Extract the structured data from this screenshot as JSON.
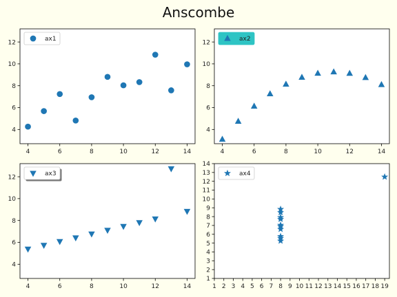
{
  "figure": {
    "background": "#ffffee",
    "title": "Anscombe"
  },
  "chart_data": [
    {
      "type": "scatter",
      "name": "ax1",
      "marker": "circle",
      "color": "#1f77b4",
      "x": [
        10,
        8,
        13,
        9,
        11,
        14,
        6,
        4,
        12,
        7,
        5
      ],
      "y": [
        8.04,
        6.95,
        7.58,
        8.81,
        8.33,
        9.96,
        7.24,
        4.26,
        10.84,
        4.82,
        5.68
      ],
      "xlim": [
        3.5,
        14.5
      ],
      "ylim": [
        2.7,
        13.2
      ],
      "xticks": [
        4,
        6,
        8,
        10,
        12,
        14
      ],
      "yticks": [
        4,
        6,
        8,
        10,
        12
      ],
      "legend": {
        "label": "ax1",
        "loc": "upper left",
        "style": "plain"
      }
    },
    {
      "type": "scatter",
      "name": "ax2",
      "marker": "triangle-up",
      "color": "#1f77b4",
      "x": [
        10,
        8,
        13,
        9,
        11,
        14,
        6,
        4,
        12,
        7,
        5
      ],
      "y": [
        9.14,
        8.14,
        8.74,
        8.77,
        9.26,
        8.1,
        6.13,
        3.1,
        9.13,
        7.26,
        4.74
      ],
      "xlim": [
        3.5,
        14.5
      ],
      "ylim": [
        2.7,
        13.2
      ],
      "xticks": [
        4,
        6,
        8,
        10,
        12,
        14
      ],
      "yticks": [
        4,
        6,
        8,
        10,
        12
      ],
      "legend": {
        "label": "ax2",
        "loc": "upper left",
        "style": "filled",
        "facecolor": "#2ec4c4"
      }
    },
    {
      "type": "scatter",
      "name": "ax3",
      "marker": "triangle-down",
      "color": "#1f77b4",
      "x": [
        10,
        8,
        13,
        9,
        11,
        14,
        6,
        4,
        12,
        7,
        5
      ],
      "y": [
        7.46,
        6.77,
        12.74,
        7.11,
        7.81,
        8.84,
        6.08,
        5.39,
        8.15,
        6.42,
        5.73
      ],
      "xlim": [
        3.5,
        14.5
      ],
      "ylim": [
        2.7,
        13.2
      ],
      "xticks": [
        4,
        6,
        8,
        10,
        12,
        14
      ],
      "yticks": [
        4,
        6,
        8,
        10,
        12
      ],
      "legend": {
        "label": "ax3",
        "loc": "upper left",
        "style": "shadow"
      }
    },
    {
      "type": "scatter",
      "name": "ax4",
      "marker": "star",
      "color": "#1f77b4",
      "x": [
        8,
        8,
        8,
        8,
        8,
        8,
        8,
        19,
        8,
        8,
        8
      ],
      "y": [
        6.58,
        5.76,
        7.71,
        8.84,
        8.47,
        7.04,
        5.25,
        12.5,
        5.56,
        7.91,
        6.89
      ],
      "xlim": [
        1,
        19.5
      ],
      "ylim": [
        1,
        14
      ],
      "xticks": [
        1,
        2,
        3,
        4,
        5,
        6,
        7,
        8,
        9,
        10,
        11,
        12,
        13,
        14,
        15,
        16,
        17,
        18,
        19
      ],
      "yticks": [
        1,
        2,
        3,
        4,
        5,
        6,
        7,
        8,
        9,
        10,
        11,
        12,
        13,
        14
      ],
      "legend": {
        "label": "ax4",
        "loc": "upper left",
        "style": "plain"
      }
    }
  ]
}
